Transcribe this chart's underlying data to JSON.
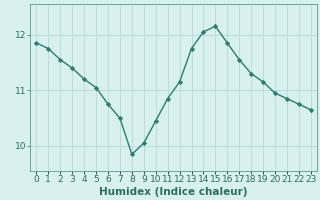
{
  "x": [
    0,
    1,
    2,
    3,
    4,
    5,
    6,
    7,
    8,
    9,
    10,
    11,
    12,
    13,
    14,
    15,
    16,
    17,
    18,
    19,
    20,
    21,
    22,
    23
  ],
  "y": [
    11.85,
    11.75,
    11.55,
    11.4,
    11.2,
    11.05,
    10.75,
    10.5,
    9.85,
    10.05,
    10.45,
    10.85,
    11.15,
    11.75,
    12.05,
    12.15,
    11.85,
    11.55,
    11.3,
    11.15,
    10.95,
    10.85,
    10.75,
    10.65
  ],
  "line_color": "#2d7d6e",
  "bg_color": "#d8f0f0",
  "grid_color": "#b8dada",
  "axis_color": "#5a9a8a",
  "tick_color": "#2d6e60",
  "xlabel": "Humidex (Indice chaleur)",
  "yticks": [
    10,
    11,
    12
  ],
  "ylim": [
    9.55,
    12.55
  ],
  "xlim": [
    -0.5,
    23.5
  ],
  "label_fontsize": 7.5,
  "tick_fontsize": 6.5,
  "linewidth": 1.0,
  "marker": "D",
  "markersize": 2.2
}
